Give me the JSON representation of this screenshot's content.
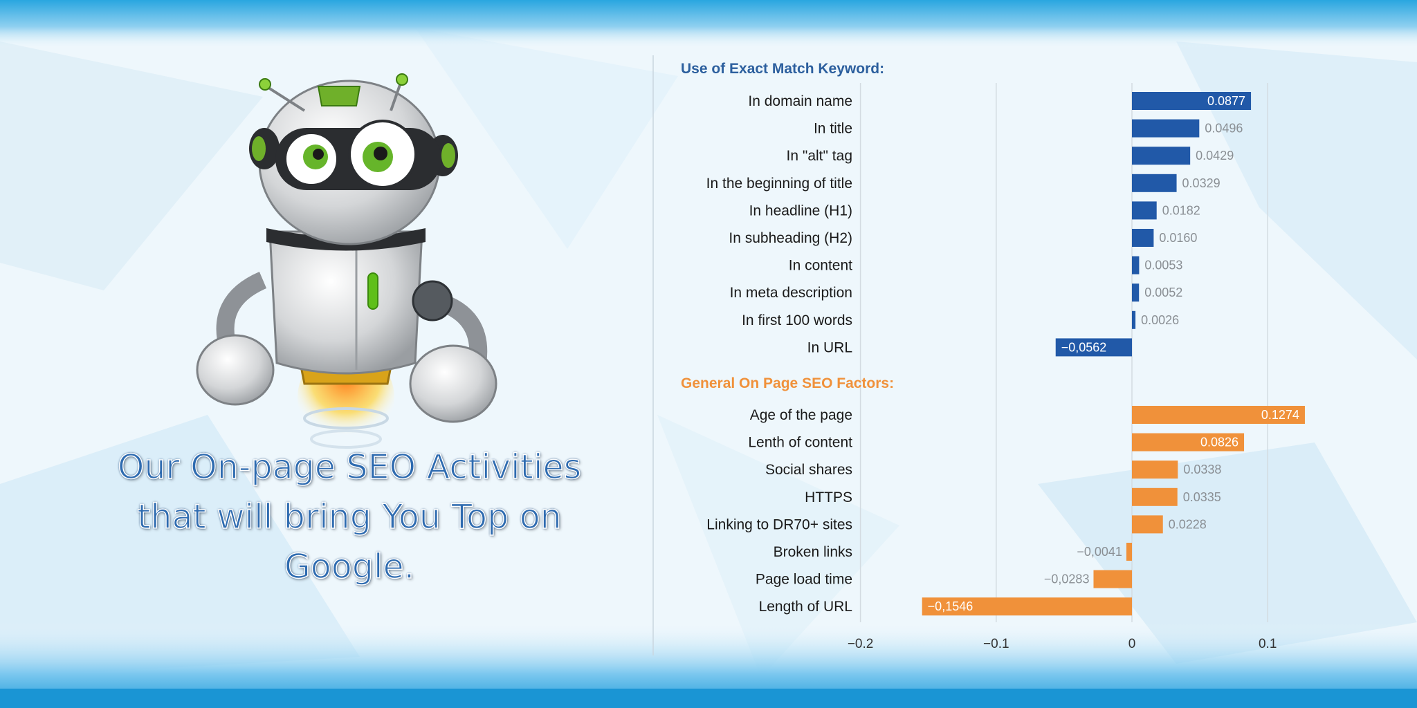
{
  "headline": {
    "line1": "Our On-page SEO Activities",
    "line2": "that will bring You Top on",
    "line3": "Google."
  },
  "colors": {
    "exact_match": "#2159a8",
    "general": "#f0913a",
    "exact_match_heading": "#2c5f9e",
    "general_heading": "#f0913a"
  },
  "chart_data": {
    "type": "bar",
    "orientation": "horizontal",
    "xlim": [
      -0.2,
      0.13
    ],
    "xticks": [
      -0.2,
      -0.1,
      0,
      0.1
    ],
    "xtick_labels": [
      "−0.2",
      "−0.1",
      "0",
      "0.1"
    ],
    "grid": true,
    "groups": [
      {
        "heading": "Use of Exact Match Keyword:",
        "color": "#2159a8",
        "categories": [
          "In domain name",
          "In title",
          "In \"alt\" tag",
          "In the beginning of title",
          "In headline (H1)",
          "In subheading (H2)",
          "In content",
          "In meta description",
          "In first 100 words",
          "In URL"
        ],
        "values": [
          0.0877,
          0.0496,
          0.0429,
          0.0329,
          0.0182,
          0.016,
          0.0053,
          0.0052,
          0.0026,
          -0.0562
        ],
        "labels": [
          "0.0877",
          "0.0496",
          "0.0429",
          "0.0329",
          "0.0182",
          "0.0160",
          "0.0053",
          "0.0052",
          "0.0026",
          "−0,0562"
        ]
      },
      {
        "heading": "General On Page SEO Factors:",
        "color": "#f0913a",
        "categories": [
          "Age of the page",
          "Lenth of content",
          "Social shares",
          "HTTPS",
          "Linking to DR70+ sites",
          "Broken links",
          "Page load time",
          "Length of URL"
        ],
        "values": [
          0.1274,
          0.0826,
          0.0338,
          0.0335,
          0.0228,
          -0.0041,
          -0.0283,
          -0.1546
        ],
        "labels": [
          "0.1274",
          "0.0826",
          "0.0338",
          "0.0335",
          "0.0228",
          "−0,0041",
          "−0,0283",
          "−0,1546"
        ]
      }
    ]
  }
}
